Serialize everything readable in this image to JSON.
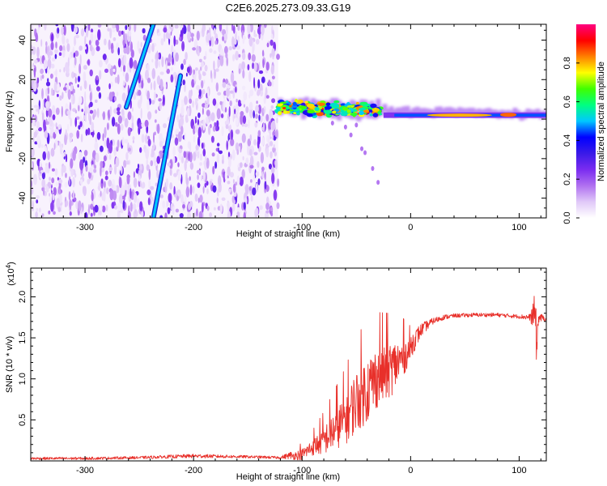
{
  "title": "C2E6.2025.273.09.33.G19",
  "chart_data": [
    {
      "type": "heatmap",
      "xlabel": "Height of straight line (km)",
      "ylabel": "Frequency (Hz)",
      "xlim": [
        -350,
        125
      ],
      "ylim": [
        -50,
        48
      ],
      "xticks": [
        -300,
        -200,
        -100,
        0,
        100
      ],
      "yticks": [
        -40,
        -20,
        0,
        20,
        40
      ],
      "colorbar": {
        "label": "Normalized spectral amplitude",
        "range": [
          0,
          1
        ],
        "ticks": [
          "0.0",
          "0.2",
          "0.4",
          "0.6",
          "0.8"
        ],
        "tick_values": [
          0.0,
          0.2,
          0.4,
          0.6,
          0.8
        ],
        "colors": [
          "#ffffff",
          "#e0c8f8",
          "#b070f0",
          "#7a2cf0",
          "#3a1ae8",
          "#0000ff",
          "#00c8ff",
          "#00ff80",
          "#40ff00",
          "#ffff00",
          "#ff8000",
          "#ff0000",
          "#ff0080"
        ]
      },
      "features": [
        {
          "name": "noise-region",
          "x_range": [
            -350,
            -122
          ],
          "freq_range": [
            -50,
            48
          ],
          "amplitude": "low (0.05-0.25)"
        },
        {
          "name": "streak-1",
          "points": [
            [
              -262,
              6
            ],
            [
              -237,
              48
            ]
          ],
          "amplitude": 0.25
        },
        {
          "name": "streak-2",
          "points": [
            [
              -237,
              -50
            ],
            [
              -212,
              22
            ]
          ],
          "amplitude": 0.3
        },
        {
          "name": "signal-band",
          "x_range": [
            -122,
            125
          ],
          "freq_center_start": 6,
          "freq_center_end": 2,
          "amplitude": "0.4-1.0"
        }
      ]
    },
    {
      "type": "line",
      "xlabel": "Height of straight line (km)",
      "ylabel": "SNR (10 * v/v)",
      "multiplier": "(x10",
      "multiplier_exp": "4",
      "xlim": [
        -350,
        125
      ],
      "ylim": [
        0,
        2.35
      ],
      "xticks": [
        -300,
        -200,
        -100,
        0,
        100
      ],
      "yticks": [
        0.5,
        1.0,
        1.5,
        2.0
      ],
      "ytick_labels": [
        "0.5",
        "1.0",
        "1.5",
        "2.0"
      ],
      "color": "#e8302a",
      "series": [
        {
          "name": "SNR",
          "x": [
            -350,
            -300,
            -250,
            -200,
            -150,
            -120,
            -100,
            -90,
            -80,
            -70,
            -60,
            -50,
            -40,
            -30,
            -20,
            -10,
            0,
            10,
            20,
            30,
            40,
            60,
            80,
            100,
            110,
            115,
            116,
            118,
            125
          ],
          "y": [
            0.03,
            0.03,
            0.04,
            0.06,
            0.05,
            0.04,
            0.1,
            0.2,
            0.3,
            0.45,
            0.6,
            0.85,
            1.0,
            1.15,
            1.2,
            1.3,
            1.4,
            1.6,
            1.7,
            1.75,
            1.77,
            1.78,
            1.78,
            1.76,
            1.75,
            1.8,
            1.4,
            1.75,
            1.73
          ],
          "noise_amplitude": [
            0.02,
            0.02,
            0.02,
            0.03,
            0.02,
            0.02,
            0.1,
            0.15,
            0.25,
            0.35,
            0.45,
            0.55,
            0.6,
            0.55,
            0.5,
            0.4,
            0.2,
            0.1,
            0.05,
            0.04,
            0.03,
            0.03,
            0.03,
            0.03,
            0.05,
            0.35,
            0.3,
            0.08,
            0.03
          ]
        }
      ]
    }
  ]
}
